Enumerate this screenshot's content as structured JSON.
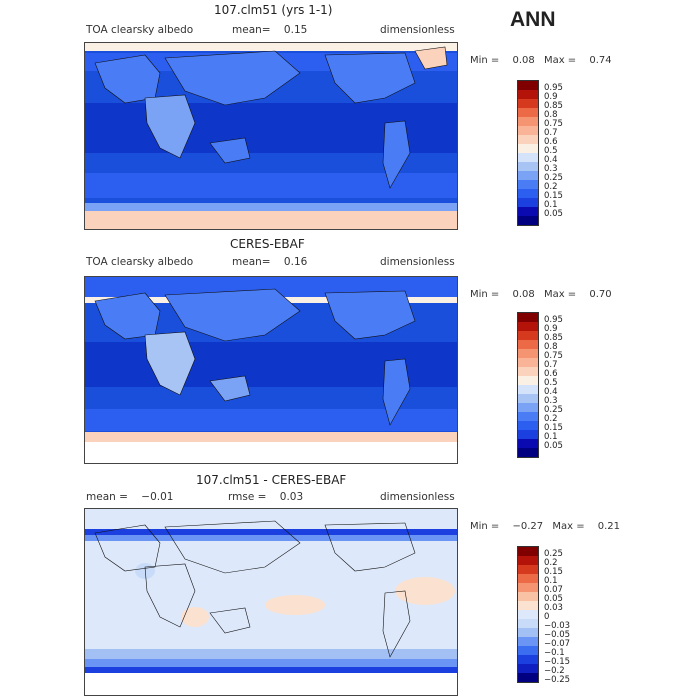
{
  "header": {
    "season": "ANN"
  },
  "panels": [
    {
      "title": "107.clm51 (yrs 1-1)",
      "left_label": "TOA clearsky albedo",
      "mean_label": "mean=",
      "mean_value": "0.15",
      "units": "dimensionless",
      "min_label": "Min =",
      "min_value": "0.08",
      "max_label": "Max =",
      "max_value": "0.74",
      "colorbar_levels": [
        "0.95",
        "0.9",
        "0.85",
        "0.8",
        "0.75",
        "0.7",
        "0.6",
        "0.5",
        "0.4",
        "0.3",
        "0.25",
        "0.2",
        "0.15",
        "0.1",
        "0.05"
      ]
    },
    {
      "title": "CERES-EBAF",
      "left_label": "TOA clearsky albedo",
      "mean_label": "mean=",
      "mean_value": "0.16",
      "units": "dimensionless",
      "min_label": "Min =",
      "min_value": "0.08",
      "max_label": "Max =",
      "max_value": "0.70",
      "colorbar_levels": [
        "0.95",
        "0.9",
        "0.85",
        "0.8",
        "0.75",
        "0.7",
        "0.6",
        "0.5",
        "0.4",
        "0.3",
        "0.25",
        "0.2",
        "0.15",
        "0.1",
        "0.05"
      ]
    },
    {
      "title": "107.clm51 - CERES-EBAF",
      "left_label": "mean =",
      "mean_label": "",
      "mean_value": "−0.01",
      "rmse_label": "rmse =",
      "rmse_value": "0.03",
      "units": "dimensionless",
      "min_label": "Min =",
      "min_value": "−0.27",
      "max_label": "Max =",
      "max_value": "0.21",
      "colorbar_levels": [
        "0.25",
        "0.2",
        "0.15",
        "0.1",
        "0.07",
        "0.05",
        "0.03",
        "0",
        "−0.03",
        "−0.05",
        "−0.07",
        "−0.1",
        "−0.15",
        "−0.2",
        "−0.25"
      ]
    }
  ],
  "colors": {
    "abs_scale": [
      "#000080",
      "#0a0ab0",
      "#1c3fe0",
      "#2c5ff0",
      "#4a7df5",
      "#7aa2f5",
      "#a8c4f5",
      "#d4e3fa",
      "#fbf0e4",
      "#fbd2bc",
      "#f9b396",
      "#f59470",
      "#ec6a45",
      "#d63a1e",
      "#b31309",
      "#800000"
    ],
    "diff_scale": [
      "#000080",
      "#1020c0",
      "#1c3fe0",
      "#3a6df0",
      "#6a95f5",
      "#a3c0f5",
      "#c8dbf8",
      "#dde9fb",
      "#fbe2d0",
      "#f9c2a4",
      "#f59470",
      "#ec6a45",
      "#d63a1e",
      "#b31309",
      "#800000"
    ],
    "map_ocean_abs": "#1a4fdc",
    "map_ocean_tropics": "#0e36c8",
    "map_land": "#4a7df5",
    "map_ice": "#fbd2bc",
    "map_diff_bg": "#dde9fb"
  }
}
